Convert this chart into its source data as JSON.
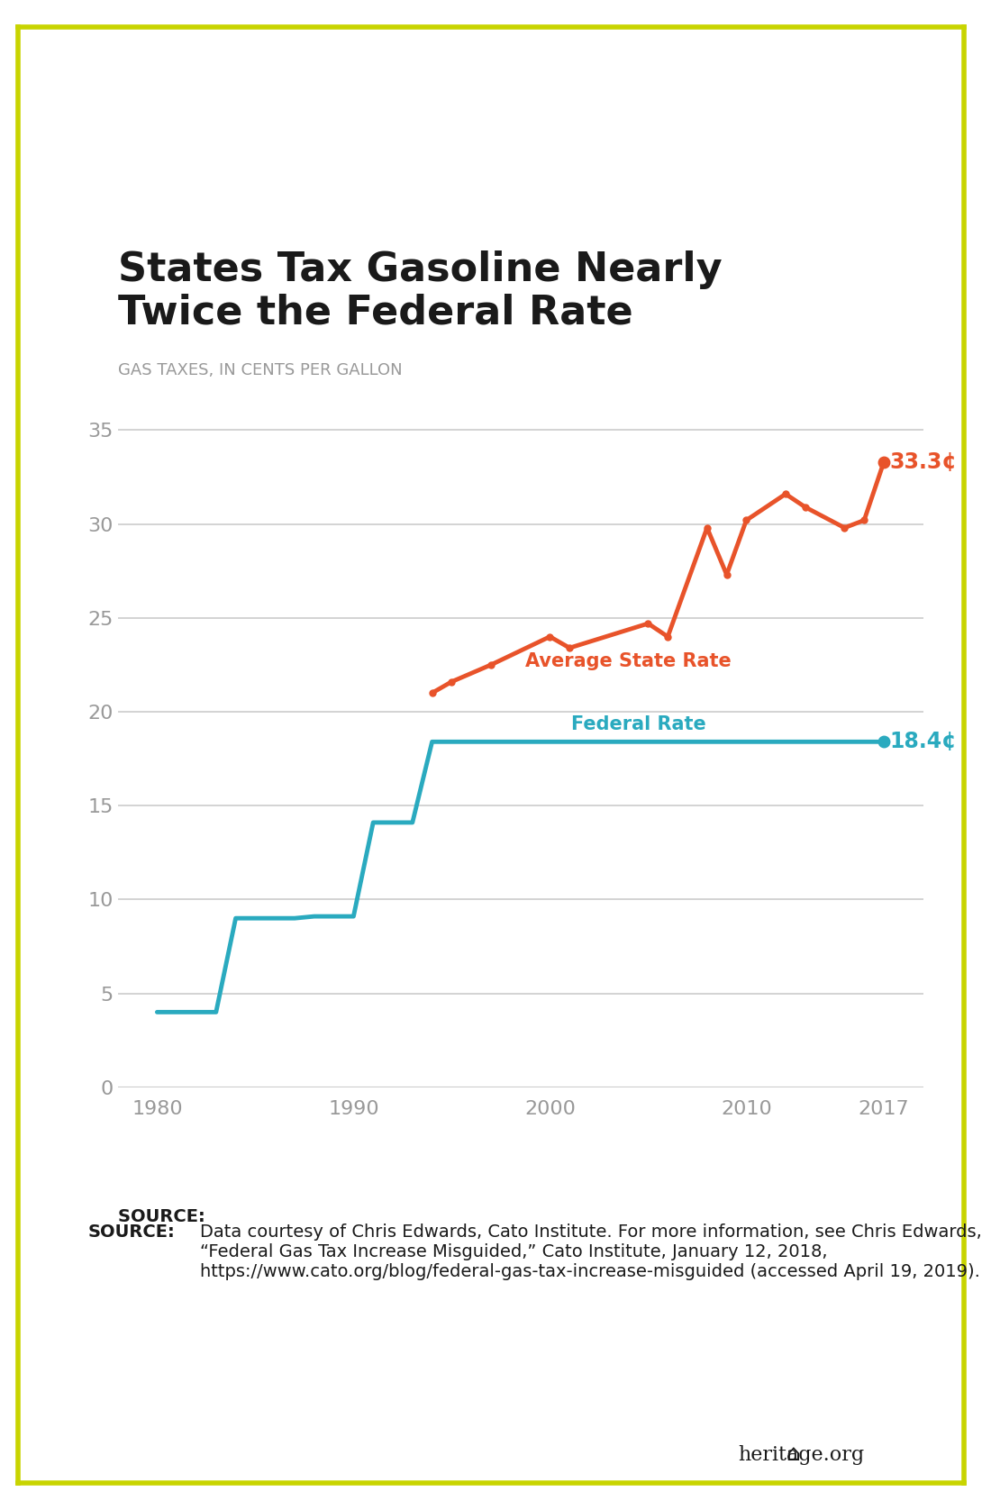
{
  "title": "States Tax Gasoline Nearly\nTwice the Federal Rate",
  "subtitle": "GAS TAXES, IN CENTS PER GALLON",
  "background_color": "#FFFFFF",
  "border_color": "#C8D400",
  "federal_data": {
    "x": [
      1980,
      1983,
      1984,
      1987,
      1988,
      1990,
      1991,
      1993,
      1994,
      1997,
      2017
    ],
    "y": [
      4.0,
      4.0,
      9.0,
      9.0,
      9.1,
      9.1,
      14.1,
      14.1,
      18.4,
      18.4,
      18.4
    ]
  },
  "state_data": {
    "x": [
      1994,
      1995,
      1997,
      2000,
      2001,
      2005,
      2006,
      2008,
      2009,
      2010,
      2012,
      2013,
      2015,
      2016,
      2017
    ],
    "y": [
      21.0,
      21.6,
      22.5,
      24.0,
      23.4,
      24.7,
      24.0,
      29.8,
      27.3,
      30.2,
      31.6,
      30.9,
      29.8,
      30.2,
      33.3
    ]
  },
  "federal_color": "#2aaabf",
  "state_color": "#e8532a",
  "federal_label": "Federal Rate",
  "state_label": "Average State Rate",
  "federal_endpoint_label": "18.4¢",
  "state_endpoint_label": "33.3¢",
  "ylim": [
    0,
    37
  ],
  "yticks": [
    0,
    5,
    10,
    15,
    20,
    25,
    30,
    35
  ],
  "xticks": [
    1980,
    1990,
    2000,
    2010,
    2017
  ],
  "source_text": "Data courtesy of Chris Edwards, Cato Institute. For more information, see Chris Edwards, “Federal Gas Tax Increase Misguided,” Cato Institute, January 12, 2018, https://www.cato.org/blog/federal-gas-tax-increase-misguided (accessed April 19, 2019).",
  "source_bold": "SOURCE:",
  "grid_color": "#cccccc",
  "tick_color": "#999999",
  "title_fontsize": 32,
  "subtitle_fontsize": 13,
  "label_fontsize": 15,
  "tick_fontsize": 16,
  "endpoint_fontsize": 17,
  "source_fontsize": 14
}
